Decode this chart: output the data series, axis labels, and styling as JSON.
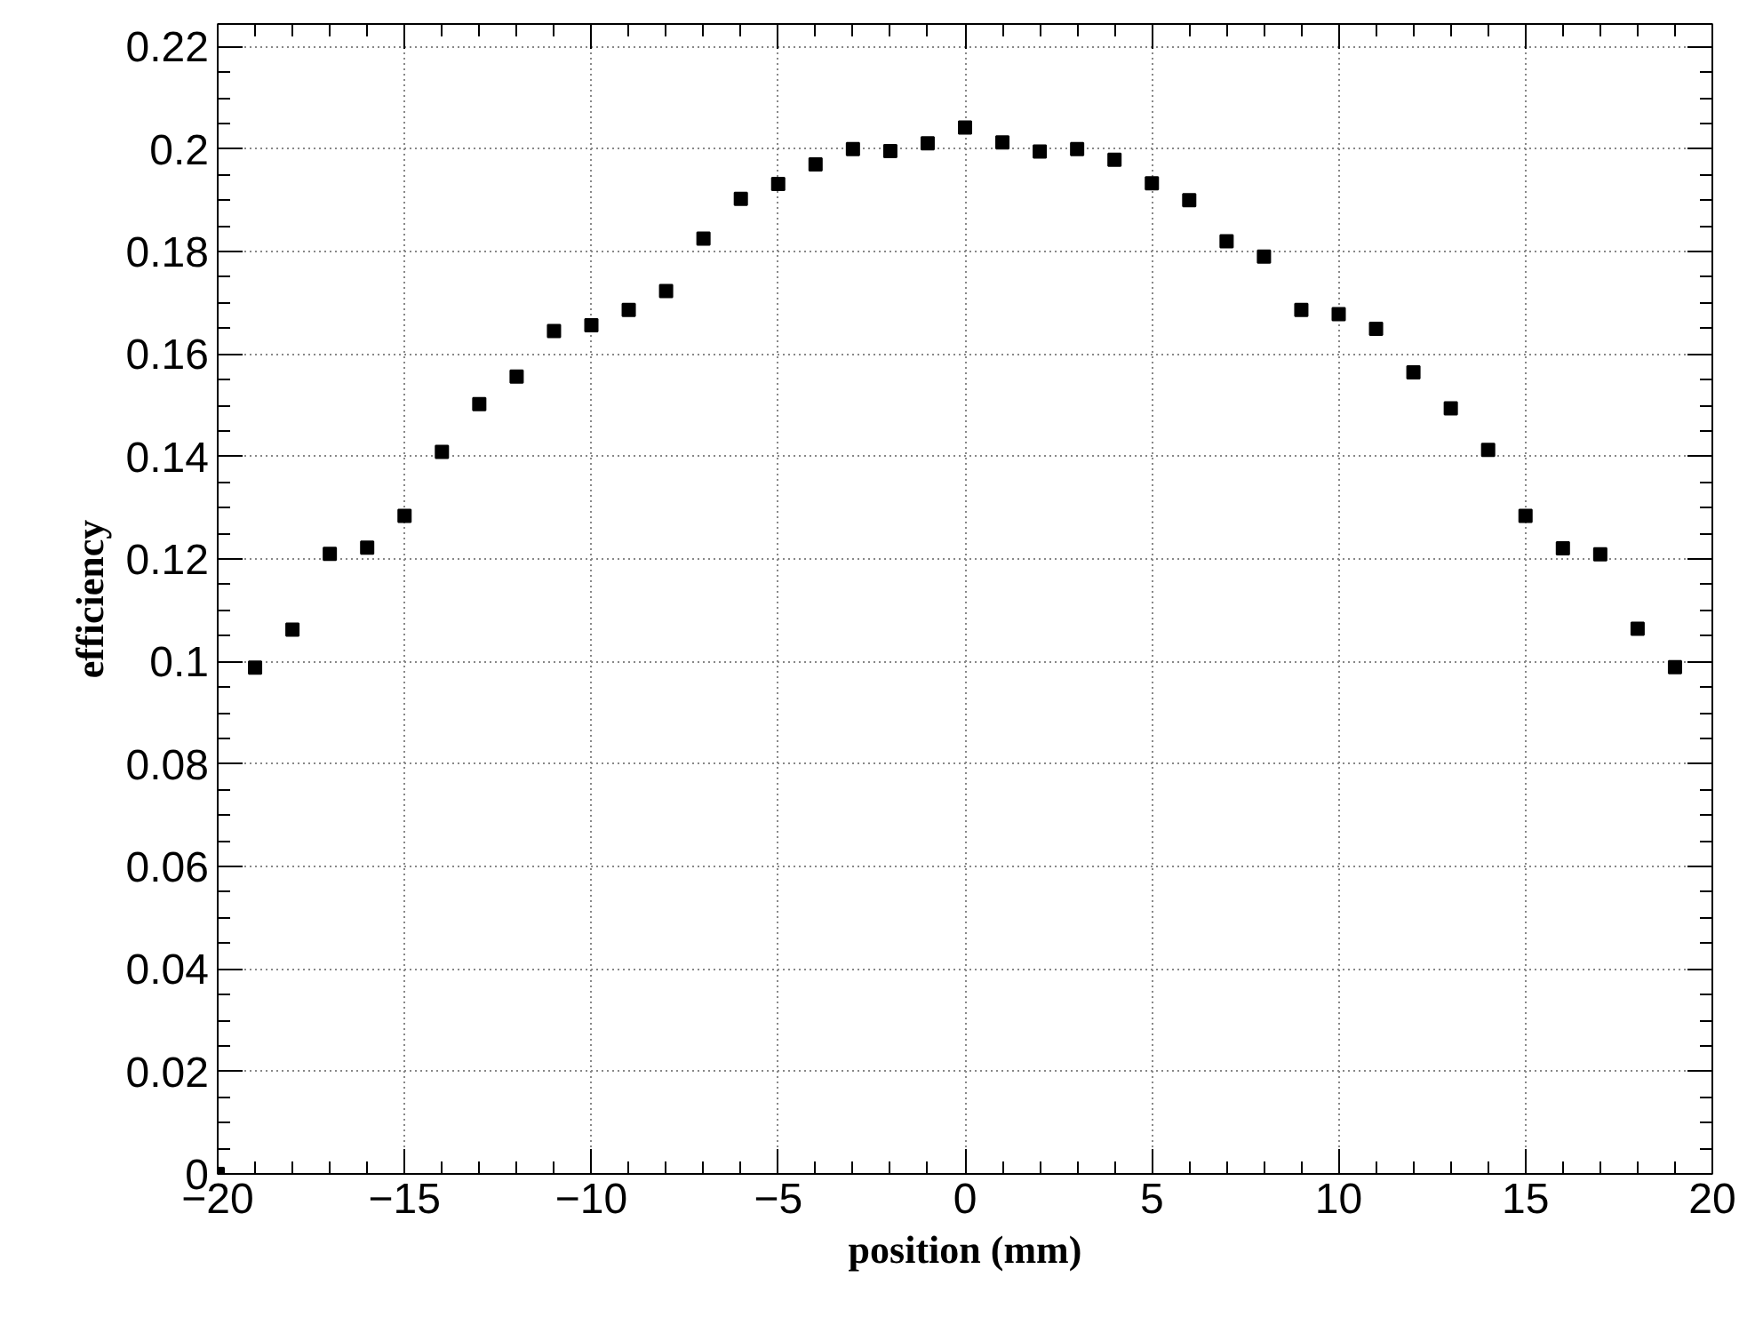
{
  "chart_data": {
    "type": "scatter",
    "xlabel": "position (mm)",
    "ylabel": "efficiency",
    "x": [
      -20,
      -19,
      -18,
      -17,
      -16,
      -15,
      -14,
      -13,
      -12,
      -11,
      -10,
      -9,
      -8,
      -7,
      -6,
      -5,
      -4,
      -3,
      -2,
      -1,
      0,
      1,
      2,
      3,
      4,
      5,
      6,
      7,
      8,
      9,
      10,
      11,
      12,
      13,
      14,
      15,
      16,
      17,
      18,
      19
    ],
    "series": [
      {
        "color": "#000000",
        "values": [
          0,
          0.0988,
          0.1062,
          0.121,
          0.1222,
          0.1284,
          0.1409,
          0.1502,
          0.1556,
          0.1645,
          0.1656,
          0.1686,
          0.1723,
          0.1825,
          0.1903,
          0.1932,
          0.197,
          0.2,
          0.1996,
          0.2011,
          0.2042,
          0.2013,
          0.1995,
          0.2,
          0.1979,
          0.1933,
          0.19,
          0.182,
          0.179,
          0.1686,
          0.1678,
          0.1649,
          0.1564,
          0.1494,
          0.1413,
          0.1284,
          0.1221,
          0.1209,
          0.1064,
          0.0989
        ]
      }
    ],
    "xlim": [
      -20,
      20
    ],
    "ylim": [
      0,
      0.2244
    ],
    "xticks": [
      -20,
      -15,
      -10,
      -5,
      0,
      5,
      10,
      15,
      20
    ],
    "yticks": [
      0,
      0.02,
      0.04,
      0.06,
      0.08,
      0.1,
      0.12,
      0.14,
      0.16,
      0.18,
      0.2,
      0.22
    ],
    "grid": true,
    "marker": "square"
  }
}
